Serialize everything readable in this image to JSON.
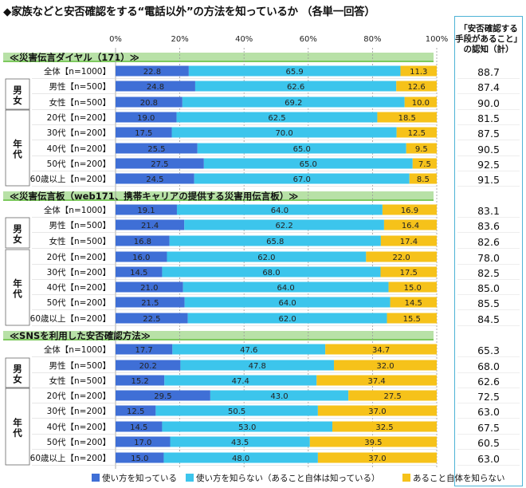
{
  "title": "◆家族などと安否確認をする“電話以外”の方法を知っているか （各単一回答）",
  "awareness_header": [
    "「安否確認する",
    "手段があること」",
    "の認知（計）"
  ],
  "colors": {
    "know_how": "#3f6fd6",
    "not_know_how": "#3cc5ec",
    "not_know_exists": "#f6c21a",
    "section_band": "#7dc95e",
    "grid": "#999999"
  },
  "chart_data": {
    "type": "bar",
    "orientation": "horizontal",
    "stacked": true,
    "xlim": [
      0,
      100
    ],
    "x_ticks": [
      "0%",
      "20%",
      "40%",
      "60%",
      "80%",
      "100%"
    ],
    "series": [
      {
        "name": "使い方を知っている"
      },
      {
        "name": "使い方を知らない（あること自体は知っている）"
      },
      {
        "name": "あること自体を知らない"
      }
    ],
    "group_labels": {
      "gender": "男女",
      "age": "年代"
    },
    "sections": [
      {
        "title": "≪災害伝言ダイヤル（171）≫",
        "rows": [
          {
            "label": "全体【n=1000】",
            "values": [
              22.8,
              65.9,
              11.3
            ],
            "awareness": "88.7"
          },
          {
            "label": "男性【n=500】",
            "values": [
              24.8,
              62.6,
              12.6
            ],
            "awareness": "87.4"
          },
          {
            "label": "女性【n=500】",
            "values": [
              20.8,
              69.2,
              10.0
            ],
            "awareness": "90.0"
          },
          {
            "label": "20代【n=200】",
            "values": [
              19.0,
              62.5,
              18.5
            ],
            "awareness": "81.5"
          },
          {
            "label": "30代【n=200】",
            "values": [
              17.5,
              70.0,
              12.5
            ],
            "awareness": "87.5"
          },
          {
            "label": "40代【n=200】",
            "values": [
              25.5,
              65.0,
              9.5
            ],
            "awareness": "90.5"
          },
          {
            "label": "50代【n=200】",
            "values": [
              27.5,
              65.0,
              7.5
            ],
            "awareness": "92.5"
          },
          {
            "label": "60歳以上【n=200】",
            "values": [
              24.5,
              67.0,
              8.5
            ],
            "awareness": "91.5"
          }
        ]
      },
      {
        "title": "≪災害伝言板（web171、携帯キャリアの提供する災害用伝言板）≫",
        "rows": [
          {
            "label": "全体【n=1000】",
            "values": [
              19.1,
              64.0,
              16.9
            ],
            "awareness": "83.1"
          },
          {
            "label": "男性【n=500】",
            "values": [
              21.4,
              62.2,
              16.4
            ],
            "awareness": "83.6"
          },
          {
            "label": "女性【n=500】",
            "values": [
              16.8,
              65.8,
              17.4
            ],
            "awareness": "82.6"
          },
          {
            "label": "20代【n=200】",
            "values": [
              16.0,
              62.0,
              22.0
            ],
            "awareness": "78.0"
          },
          {
            "label": "30代【n=200】",
            "values": [
              14.5,
              68.0,
              17.5
            ],
            "awareness": "82.5"
          },
          {
            "label": "40代【n=200】",
            "values": [
              21.0,
              64.0,
              15.0
            ],
            "awareness": "85.0"
          },
          {
            "label": "50代【n=200】",
            "values": [
              21.5,
              64.0,
              14.5
            ],
            "awareness": "85.5"
          },
          {
            "label": "60歳以上【n=200】",
            "values": [
              22.5,
              62.0,
              15.5
            ],
            "awareness": "84.5"
          }
        ]
      },
      {
        "title": "≪SNSを利用した安否確認方法≫",
        "rows": [
          {
            "label": "全体【n=1000】",
            "values": [
              17.7,
              47.6,
              34.7
            ],
            "awareness": "65.3"
          },
          {
            "label": "男性【n=500】",
            "values": [
              20.2,
              47.8,
              32.0
            ],
            "awareness": "68.0"
          },
          {
            "label": "女性【n=500】",
            "values": [
              15.2,
              47.4,
              37.4
            ],
            "awareness": "62.6"
          },
          {
            "label": "20代【n=200】",
            "values": [
              29.5,
              43.0,
              27.5
            ],
            "awareness": "72.5"
          },
          {
            "label": "30代【n=200】",
            "values": [
              12.5,
              50.5,
              37.0
            ],
            "awareness": "63.0"
          },
          {
            "label": "40代【n=200】",
            "values": [
              14.5,
              53.0,
              32.5
            ],
            "awareness": "67.5"
          },
          {
            "label": "50代【n=200】",
            "values": [
              17.0,
              43.5,
              39.5
            ],
            "awareness": "60.5"
          },
          {
            "label": "60歳以上【n=200】",
            "values": [
              15.0,
              48.0,
              37.0
            ],
            "awareness": "63.0"
          }
        ]
      }
    ]
  }
}
